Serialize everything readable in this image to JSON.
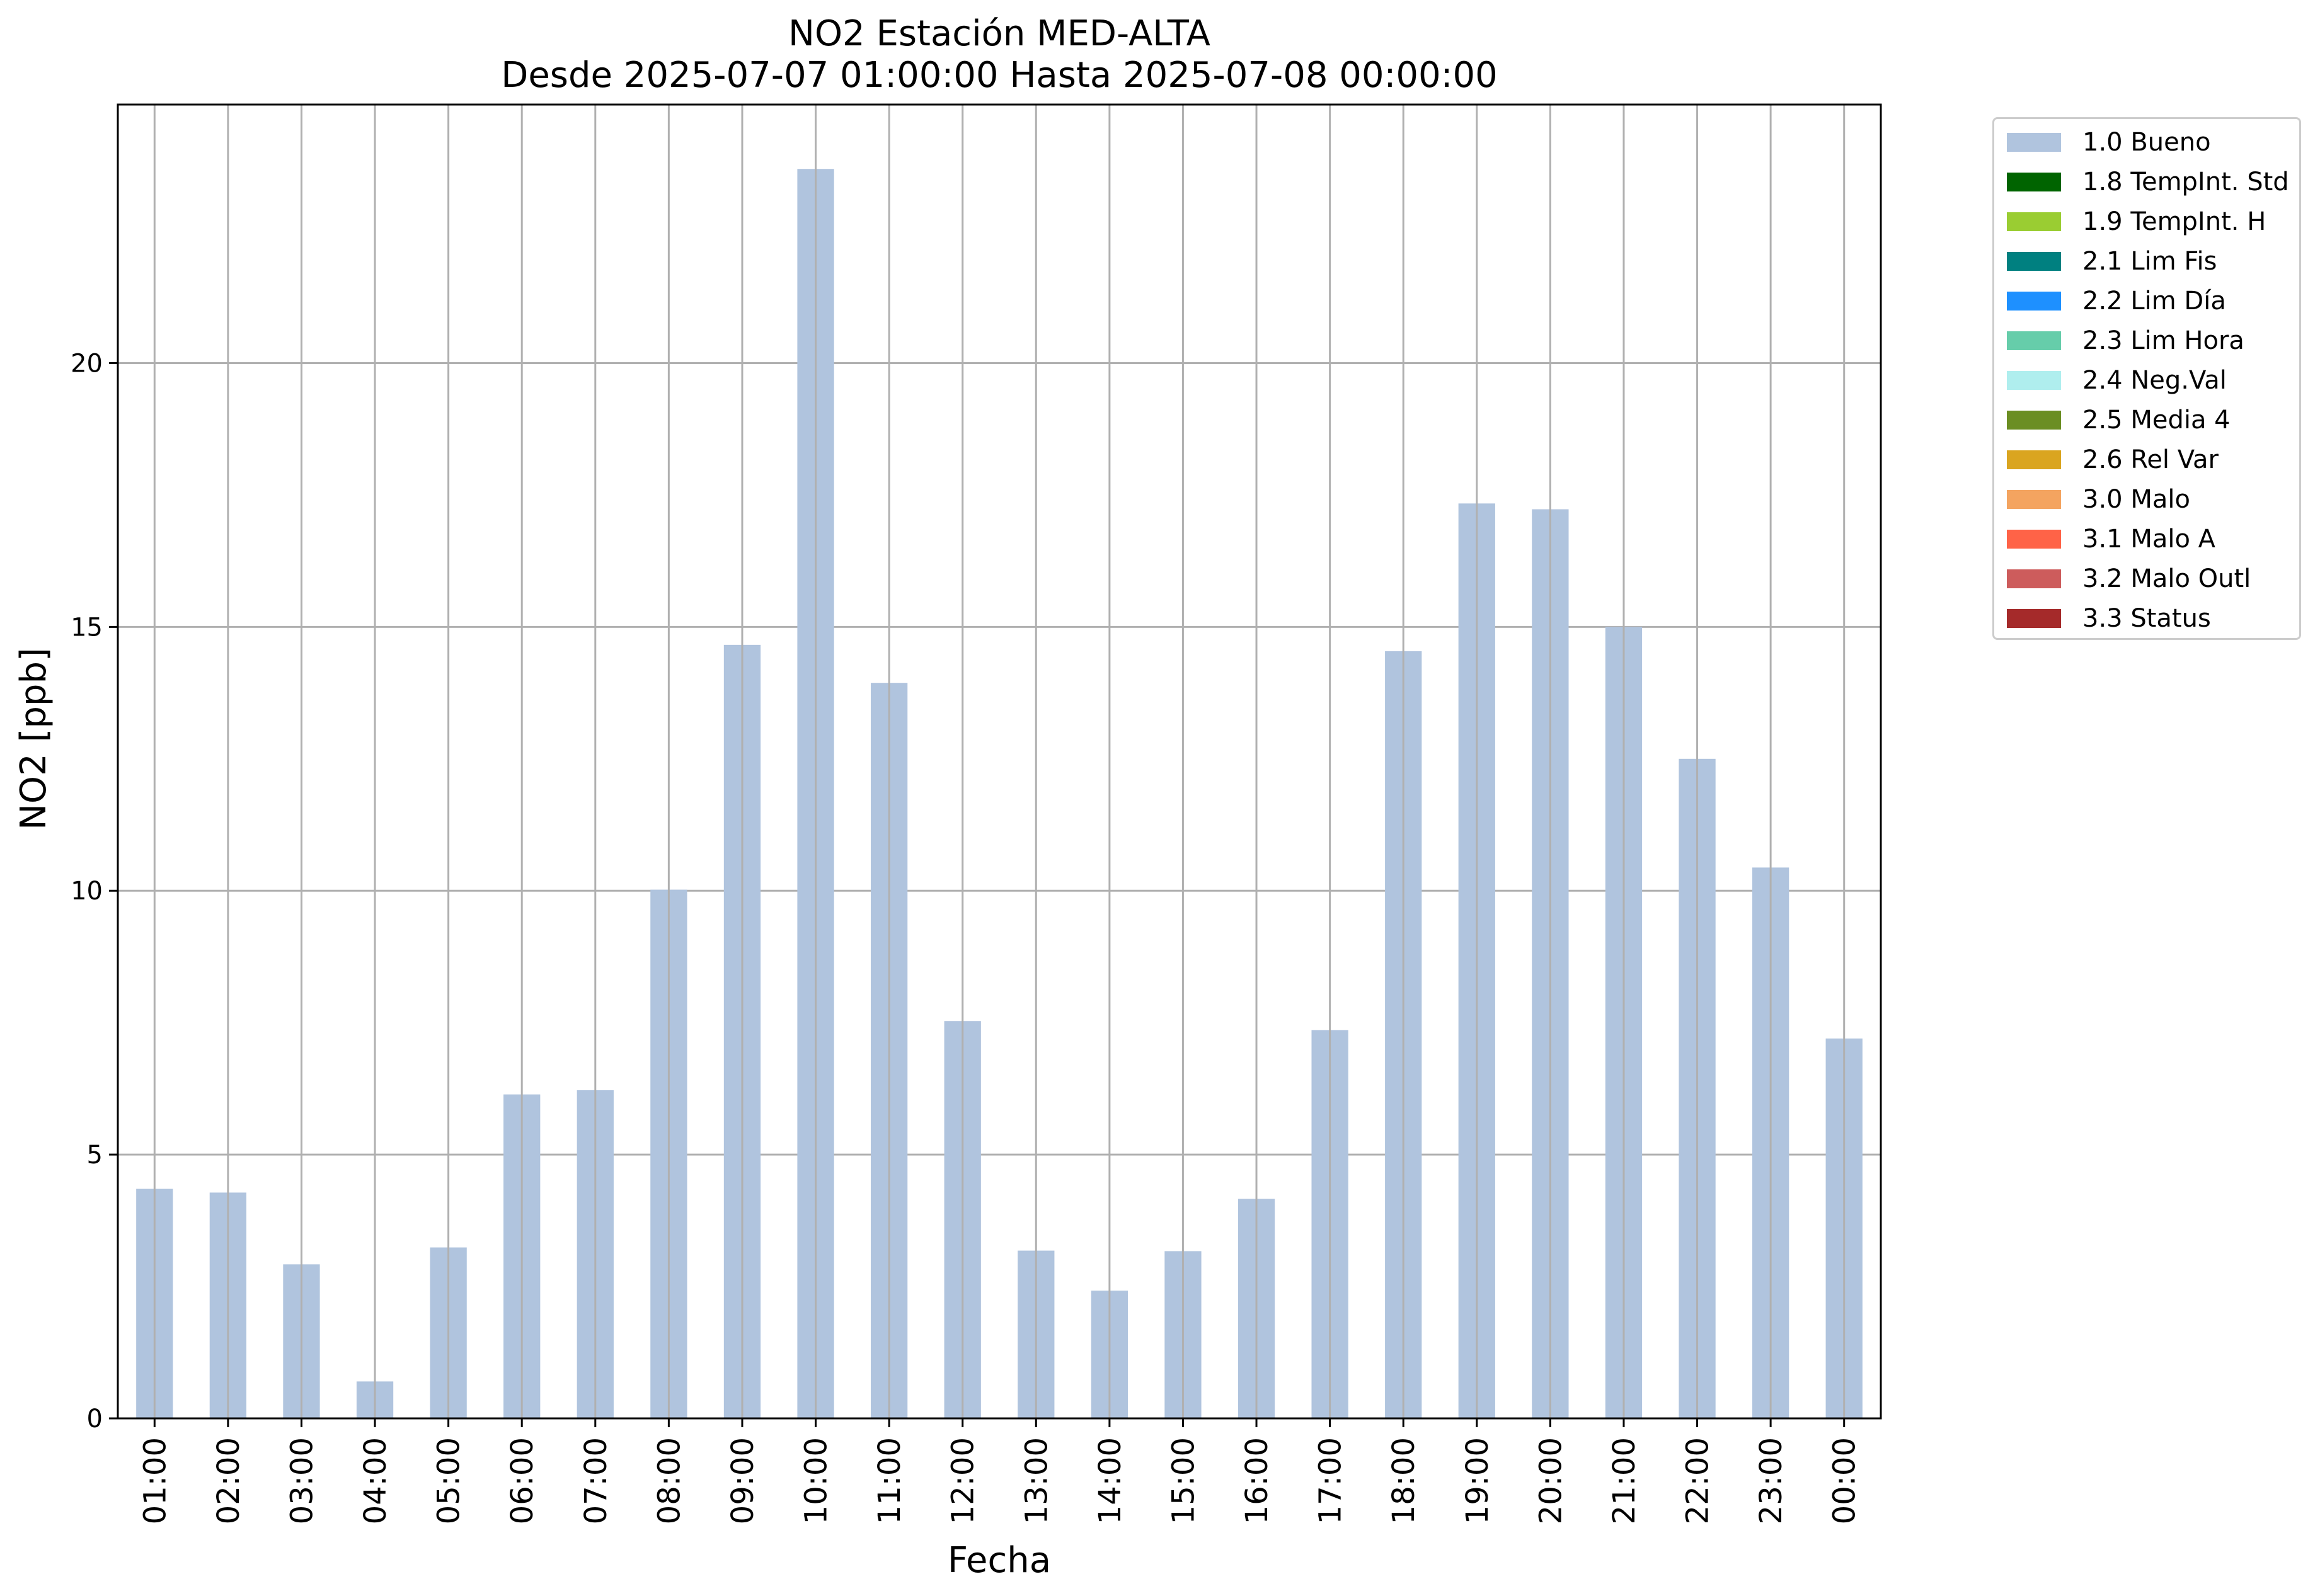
{
  "title": {
    "line1": "NO2 Estación MED-ALTA",
    "line2": "Desde 2025-07-07 01:00:00 Hasta 2025-07-08 00:00:00"
  },
  "chart_data": {
    "type": "bar",
    "xlabel": "Fecha",
    "ylabel": "NO2 [ppb]",
    "ylim": [
      0,
      24.9
    ],
    "yticks": [
      0,
      5,
      10,
      15,
      20
    ],
    "grid": true,
    "legend_position": "outside-top-right",
    "bar_color": "#b0c4de",
    "categories": [
      "01:00",
      "02:00",
      "03:00",
      "04:00",
      "05:00",
      "06:00",
      "07:00",
      "08:00",
      "09:00",
      "10:00",
      "11:00",
      "12:00",
      "13:00",
      "14:00",
      "15:00",
      "16:00",
      "17:00",
      "18:00",
      "19:00",
      "20:00",
      "21:00",
      "22:00",
      "23:00",
      "00:00"
    ],
    "series": [
      {
        "name": "1.0 Bueno",
        "color": "#b0c4de",
        "values": [
          4.35,
          4.28,
          2.92,
          0.7,
          3.24,
          6.14,
          6.22,
          10.02,
          14.66,
          23.68,
          13.94,
          7.53,
          3.18,
          2.42,
          3.17,
          4.16,
          7.36,
          14.54,
          17.34,
          17.23,
          15.0,
          12.5,
          10.44,
          7.2
        ]
      }
    ],
    "legend": [
      {
        "label": "1.0 Bueno",
        "color": "#b0c4de"
      },
      {
        "label": "1.8 TempInt. Std",
        "color": "#006400"
      },
      {
        "label": "1.9 TempInt. H",
        "color": "#9acd32"
      },
      {
        "label": "2.1 Lim Fis",
        "color": "#008080"
      },
      {
        "label": "2.2 Lim Día",
        "color": "#1e90ff"
      },
      {
        "label": "2.3 Lim Hora",
        "color": "#66cdaa"
      },
      {
        "label": "2.4 Neg.Val",
        "color": "#afeeee"
      },
      {
        "label": "2.5 Media 4",
        "color": "#6b8e23"
      },
      {
        "label": "2.6 Rel Var",
        "color": "#daa520"
      },
      {
        "label": "3.0 Malo",
        "color": "#f4a460"
      },
      {
        "label": "3.1 Malo A",
        "color": "#ff6347"
      },
      {
        "label": "3.2 Malo Outl",
        "color": "#cd5c5c"
      },
      {
        "label": "3.3 Status",
        "color": "#a52a2a"
      }
    ]
  }
}
